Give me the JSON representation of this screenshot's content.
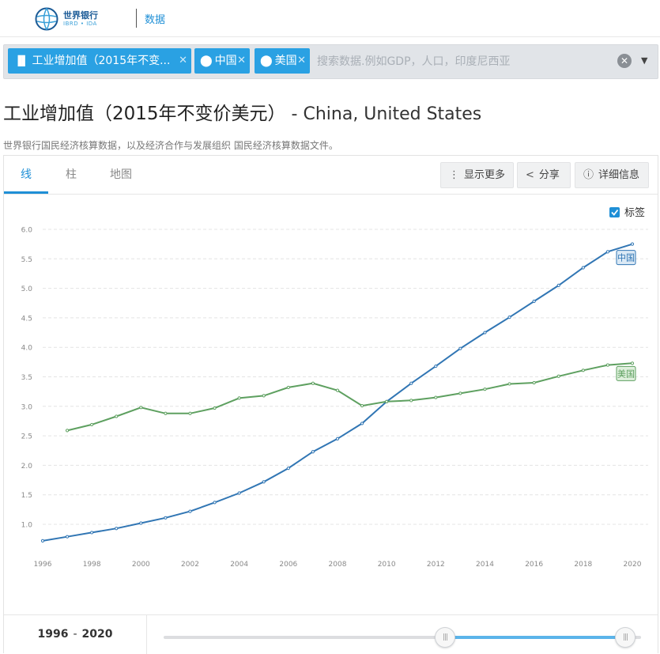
{
  "header": {
    "logo_name": "世界银行",
    "logo_sub": "IBRD • IDA",
    "nav_label": "数据"
  },
  "filters": {
    "indicator_chip": "工业增加值（2015年不变...",
    "country_chips": [
      "中国",
      "美国"
    ],
    "search_placeholder": "搜索数据.例如GDP，人口，印度尼西亚",
    "clear_icon": "clear-icon",
    "dropdown_icon": "caret-down-icon"
  },
  "page": {
    "title_cn": "工业增加值（2015年不变价美元）",
    "title_en": " - China, United States",
    "subtitle": "世界银行国民经济核算数据，以及经济合作与发展组织 国民经济核算数据文件。"
  },
  "tabs": [
    {
      "label": "线",
      "active": true
    },
    {
      "label": "柱",
      "active": false
    },
    {
      "label": "地图",
      "active": false
    }
  ],
  "toolbar": {
    "more_label": "显示更多",
    "share_label": "分享",
    "details_label": "详细信息"
  },
  "legend_toggle": {
    "label": "标签",
    "checked": true
  },
  "range": {
    "start": "1996",
    "end": "2020"
  },
  "colors": {
    "china": "#3176b4",
    "usa": "#5ea060",
    "accent": "#2aa1e3"
  },
  "chart_data": {
    "type": "line",
    "x": [
      1996,
      1997,
      1998,
      1999,
      2000,
      2001,
      2002,
      2003,
      2004,
      2005,
      2006,
      2007,
      2008,
      2009,
      2010,
      2011,
      2012,
      2013,
      2014,
      2015,
      2016,
      2017,
      2018,
      2019,
      2020
    ],
    "xticks": [
      "1996",
      "1998",
      "2000",
      "2002",
      "2004",
      "2006",
      "2008",
      "2010",
      "2012",
      "2014",
      "2016",
      "2018",
      "2020"
    ],
    "yticks": [
      "1.0",
      "1.5",
      "2.0",
      "2.5",
      "3.0",
      "3.5",
      "4.0",
      "4.5",
      "5.0",
      "5.5",
      "6.0"
    ],
    "ylim": [
      0.7,
      6.0
    ],
    "grid": true,
    "series": [
      {
        "name": "中国",
        "color": "#3176b4",
        "values": [
          0.72,
          0.79,
          0.86,
          0.93,
          1.02,
          1.11,
          1.22,
          1.37,
          1.53,
          1.72,
          1.95,
          2.23,
          2.45,
          2.71,
          3.08,
          3.39,
          3.68,
          3.98,
          4.25,
          4.51,
          4.78,
          5.05,
          5.35,
          5.62,
          5.75
        ]
      },
      {
        "name": "美国",
        "color": "#5ea060",
        "values": [
          null,
          2.59,
          2.69,
          2.83,
          2.98,
          2.88,
          2.88,
          2.97,
          3.14,
          3.18,
          3.32,
          3.39,
          3.27,
          3.01,
          3.08,
          3.1,
          3.15,
          3.22,
          3.29,
          3.38,
          3.4,
          3.51,
          3.61,
          3.7,
          3.73
        ]
      }
    ]
  }
}
